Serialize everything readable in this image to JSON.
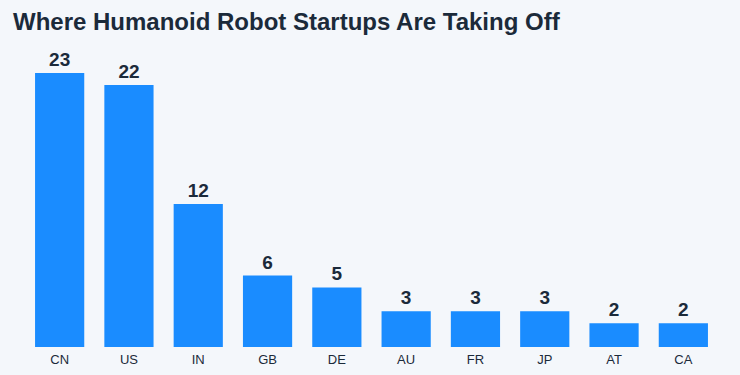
{
  "chart_data": {
    "type": "bar",
    "title": "Where Humanoid Robot Startups Are Taking Off",
    "categories": [
      "CN",
      "US",
      "IN",
      "GB",
      "DE",
      "AU",
      "FR",
      "JP",
      "AT",
      "CA"
    ],
    "values": [
      23,
      22,
      12,
      6,
      5,
      3,
      3,
      3,
      2,
      2
    ],
    "color": "#1a8cff",
    "ylim": [
      0,
      23
    ],
    "grid": false,
    "data_labels": true,
    "tick_labels": "x"
  }
}
